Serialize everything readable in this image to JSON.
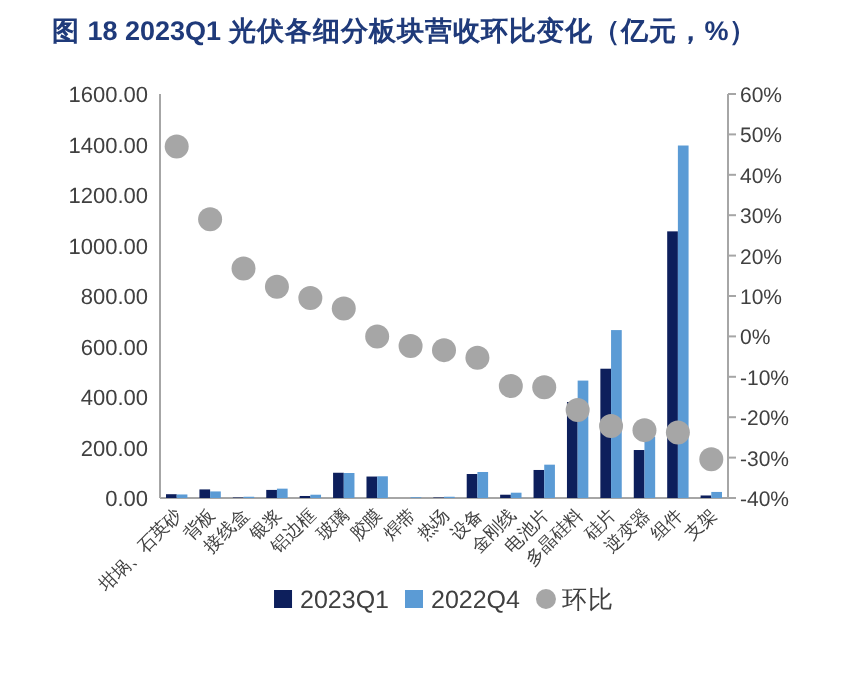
{
  "chart_data": {
    "type": "bar",
    "title": "图 18  2023Q1 光伏各细分板块营收环比变化（亿元，%）",
    "categories": [
      "坩埚、石英砂",
      "背板",
      "接线盒",
      "银浆",
      "铝边框",
      "玻璃",
      "胶膜",
      "焊带",
      "热场",
      "设备",
      "金刚线",
      "电池片",
      "多晶硅料",
      "硅片",
      "逆变器",
      "组件",
      "支架"
    ],
    "series": [
      {
        "name": "2023Q1",
        "color": "#0d1f5c",
        "values": [
          15,
          34,
          2,
          32,
          8,
          100,
          85,
          null,
          2,
          95,
          13,
          111,
          380,
          512,
          190,
          1056,
          10
        ]
      },
      {
        "name": "2022Q4",
        "color": "#5b9bd5",
        "values": [
          14,
          26,
          5,
          37,
          13,
          99,
          86,
          3,
          5,
          103,
          21,
          132,
          465,
          665,
          243,
          1396,
          24
        ]
      },
      {
        "name": "环比",
        "type": "scatter",
        "axis": "y2",
        "marker": "circle",
        "color": "#a6a6a6",
        "values": [
          47,
          29,
          16.8,
          12.3,
          9.5,
          6.9,
          0,
          -2.4,
          -3.4,
          -5.3,
          -12.3,
          -12.6,
          -18.2,
          -22.2,
          -23.2,
          -23.8,
          -30.4
        ]
      }
    ],
    "ylim": [
      0,
      1600
    ],
    "yticks": [
      {
        "value": 0,
        "label": "0.00"
      },
      {
        "value": 200,
        "label": "200.00"
      },
      {
        "value": 400,
        "label": "400.00"
      },
      {
        "value": 600,
        "label": "600.00"
      },
      {
        "value": 800,
        "label": "800.00"
      },
      {
        "value": 1000,
        "label": "1000.00"
      },
      {
        "value": 1200,
        "label": "1200.00"
      },
      {
        "value": 1400,
        "label": "1400.00"
      },
      {
        "value": 1600,
        "label": "1600.00"
      }
    ],
    "y2lim": [
      -40,
      60
    ],
    "y2ticks": [
      {
        "value": -40,
        "label": "-40%"
      },
      {
        "value": -30,
        "label": "-30%"
      },
      {
        "value": -20,
        "label": "-20%"
      },
      {
        "value": -10,
        "label": "-10%"
      },
      {
        "value": 0,
        "label": "0%"
      },
      {
        "value": 10,
        "label": "10%"
      },
      {
        "value": 20,
        "label": "20%"
      },
      {
        "value": 30,
        "label": "30%"
      },
      {
        "value": 40,
        "label": "40%"
      },
      {
        "value": 50,
        "label": "50%"
      },
      {
        "value": 60,
        "label": "60%"
      }
    ],
    "legend": "bottom"
  }
}
